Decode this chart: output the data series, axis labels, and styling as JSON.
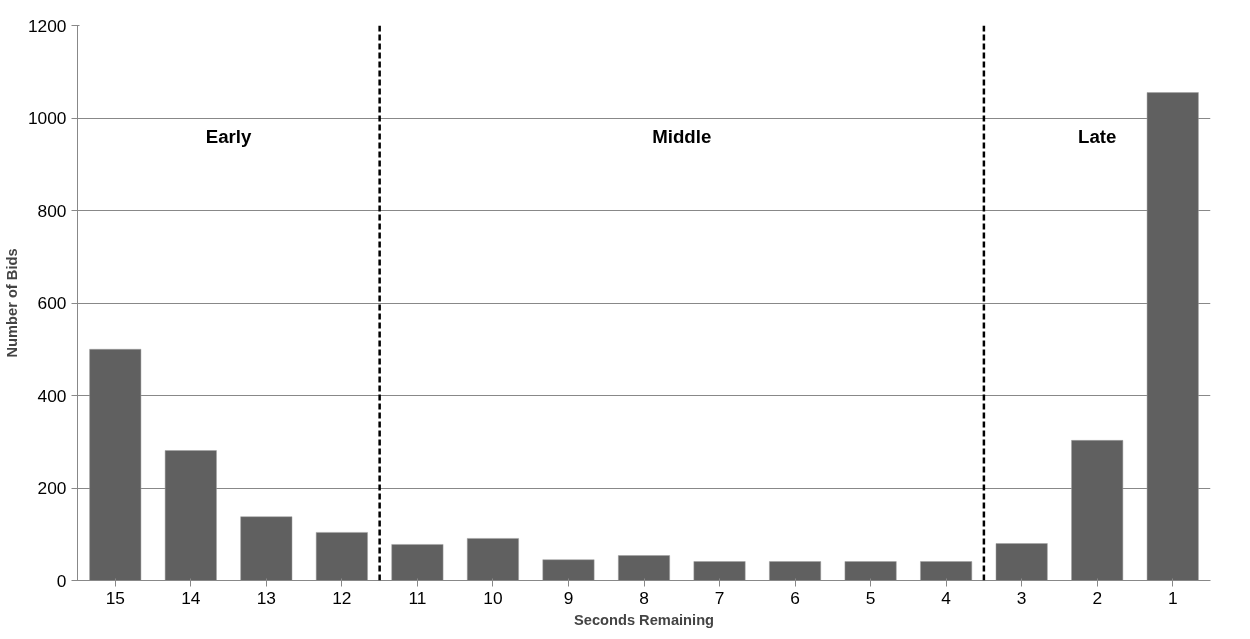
{
  "chart_data": {
    "type": "bar",
    "xlabel": "Seconds Remaining",
    "ylabel": "Number of Bids",
    "x": [
      15,
      14,
      13,
      12,
      11,
      10,
      9,
      8,
      7,
      6,
      5,
      4,
      3,
      2,
      1
    ],
    "values": [
      500,
      281,
      138,
      104,
      78,
      91,
      45,
      54,
      41,
      41,
      41,
      41,
      80,
      303,
      1055
    ],
    "color": "#606060",
    "xlim": [
      15.5,
      0.5
    ],
    "xticks": [
      15,
      14,
      13,
      12,
      11,
      10,
      9,
      8,
      7,
      6,
      5,
      4,
      3,
      2,
      1
    ],
    "ylim": [
      0,
      1200
    ],
    "yticks": [
      0,
      200,
      400,
      600,
      800,
      1000,
      1200
    ],
    "grid": "y",
    "ref_lines": [
      {
        "axis": "x",
        "value": 11.5,
        "color": "#000000",
        "line_style": "dashed"
      },
      {
        "axis": "x",
        "value": 3.5,
        "color": "#000000",
        "line_style": "dashed"
      }
    ],
    "annotations": [
      "Early",
      "Middle",
      "Late"
    ]
  }
}
